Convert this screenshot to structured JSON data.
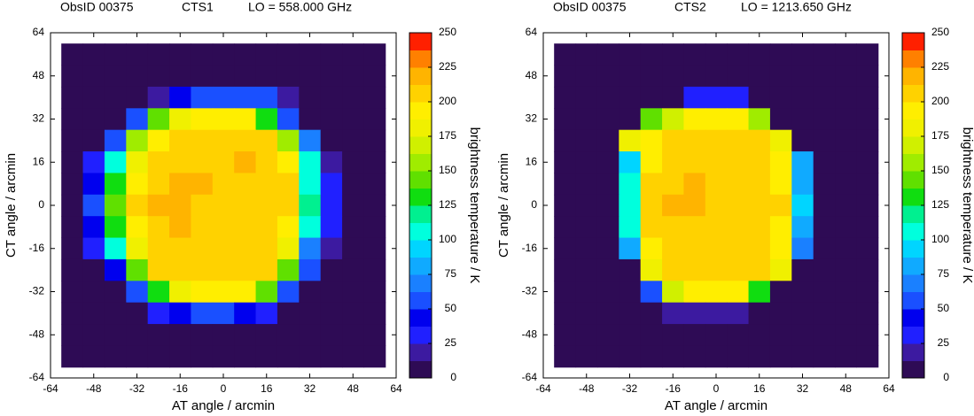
{
  "chart_data": [
    {
      "type": "heatmap",
      "title": [
        "ObsID 00375",
        "CTS1",
        "LO = 558.000 GHz"
      ],
      "x_label": "AT angle / arcmin",
      "y_label": "CT angle / arcmin",
      "colorbar_label": "brightness temperature / K",
      "xlim": [
        -64,
        64
      ],
      "ylim": [
        -64,
        64
      ],
      "xticks": [
        -64,
        -48,
        -32,
        -16,
        0,
        16,
        32,
        48,
        64
      ],
      "yticks": [
        -64,
        -48,
        -32,
        -16,
        0,
        16,
        32,
        48,
        64
      ],
      "clim": [
        0,
        250
      ],
      "cticks": [
        0,
        25,
        50,
        75,
        100,
        125,
        150,
        175,
        200,
        225,
        250
      ],
      "colors": [
        "#2e0b55",
        "#3c1aa0",
        "#2020ff",
        "#0000ee",
        "#1a50ff",
        "#1a80ff",
        "#10aaff",
        "#00d5ff",
        "#00ffdd",
        "#00f090",
        "#10dd10",
        "#60e000",
        "#a0ec00",
        "#d0f000",
        "#f0f000",
        "#ffee00",
        "#ffd200",
        "#ffb400",
        "#ff8000",
        "#ff2000"
      ],
      "x": [
        -56,
        -48,
        -40,
        -32,
        -24,
        -16,
        -8,
        0,
        8,
        16,
        24,
        32,
        40,
        48,
        56
      ],
      "y": [
        56,
        48,
        40,
        32,
        24,
        16,
        8,
        0,
        -8,
        -16,
        -24,
        -32,
        -40,
        -48,
        -56
      ],
      "z": [
        [
          5,
          5,
          5,
          5,
          5,
          5,
          5,
          5,
          5,
          5,
          5,
          5,
          5,
          5,
          5
        ],
        [
          5,
          5,
          5,
          5,
          8,
          10,
          10,
          10,
          10,
          8,
          5,
          5,
          5,
          5,
          5
        ],
        [
          5,
          5,
          5,
          8,
          15,
          40,
          50,
          60,
          55,
          50,
          15,
          8,
          5,
          5,
          5
        ],
        [
          5,
          5,
          10,
          60,
          140,
          185,
          195,
          195,
          190,
          130,
          60,
          10,
          5,
          5,
          5
        ],
        [
          5,
          8,
          60,
          150,
          195,
          200,
          205,
          205,
          205,
          200,
          150,
          70,
          10,
          5,
          5
        ],
        [
          5,
          30,
          110,
          185,
          205,
          210,
          205,
          210,
          215,
          205,
          190,
          100,
          20,
          5,
          5
        ],
        [
          5,
          45,
          130,
          195,
          210,
          215,
          215,
          210,
          210,
          205,
          200,
          110,
          30,
          5,
          5
        ],
        [
          5,
          50,
          140,
          200,
          215,
          220,
          210,
          205,
          205,
          205,
          200,
          115,
          30,
          5,
          5
        ],
        [
          5,
          40,
          125,
          195,
          210,
          215,
          210,
          205,
          205,
          200,
          190,
          100,
          25,
          5,
          5
        ],
        [
          5,
          25,
          100,
          185,
          205,
          205,
          205,
          205,
          205,
          200,
          180,
          70,
          15,
          5,
          5
        ],
        [
          5,
          10,
          40,
          140,
          200,
          205,
          205,
          205,
          210,
          200,
          140,
          50,
          10,
          5,
          5
        ],
        [
          5,
          5,
          10,
          50,
          130,
          180,
          195,
          195,
          190,
          140,
          60,
          10,
          5,
          5,
          5
        ],
        [
          5,
          5,
          5,
          10,
          30,
          45,
          50,
          55,
          45,
          30,
          10,
          5,
          5,
          5,
          5
        ],
        [
          5,
          5,
          5,
          5,
          8,
          10,
          10,
          10,
          10,
          8,
          5,
          5,
          5,
          5,
          5
        ],
        [
          5,
          5,
          5,
          5,
          5,
          5,
          5,
          5,
          5,
          5,
          5,
          5,
          5,
          5,
          5
        ]
      ]
    },
    {
      "type": "heatmap",
      "title": [
        "ObsID 00375",
        "CTS2",
        "LO = 1213.650 GHz"
      ],
      "x_label": "AT angle / arcmin",
      "y_label": "CT angle / arcmin",
      "colorbar_label": "brightness temperature / K",
      "xlim": [
        -64,
        64
      ],
      "ylim": [
        -64,
        64
      ],
      "xticks": [
        -64,
        -48,
        -32,
        -16,
        0,
        16,
        32,
        48,
        64
      ],
      "yticks": [
        -64,
        -48,
        -32,
        -16,
        0,
        16,
        32,
        48,
        64
      ],
      "clim": [
        0,
        250
      ],
      "cticks": [
        0,
        25,
        50,
        75,
        100,
        125,
        150,
        175,
        200,
        225,
        250
      ],
      "colors": [
        "#2e0b55",
        "#3c1aa0",
        "#2020ff",
        "#0000ee",
        "#1a50ff",
        "#1a80ff",
        "#10aaff",
        "#00d5ff",
        "#00ffdd",
        "#00f090",
        "#10dd10",
        "#60e000",
        "#a0ec00",
        "#d0f000",
        "#f0f000",
        "#ffee00",
        "#ffd200",
        "#ffb400",
        "#ff8000",
        "#ff2000"
      ],
      "x": [
        -56,
        -48,
        -40,
        -32,
        -24,
        -16,
        -8,
        0,
        8,
        16,
        24,
        32,
        40,
        48,
        56
      ],
      "y": [
        56,
        48,
        40,
        32,
        24,
        16,
        8,
        0,
        -8,
        -16,
        -24,
        -32,
        -40,
        -48,
        -56
      ],
      "z": [
        [
          5,
          5,
          5,
          5,
          5,
          5,
          5,
          5,
          5,
          5,
          5,
          5,
          5,
          5,
          5
        ],
        [
          5,
          5,
          5,
          5,
          5,
          5,
          5,
          10,
          10,
          5,
          5,
          5,
          5,
          5,
          5
        ],
        [
          5,
          5,
          5,
          5,
          5,
          10,
          30,
          35,
          30,
          10,
          5,
          5,
          5,
          5,
          5
        ],
        [
          5,
          5,
          5,
          5,
          140,
          170,
          195,
          195,
          190,
          150,
          10,
          5,
          5,
          5,
          5
        ],
        [
          5,
          5,
          5,
          175,
          195,
          205,
          205,
          205,
          205,
          200,
          175,
          10,
          5,
          5,
          5
        ],
        [
          5,
          5,
          10,
          90,
          195,
          205,
          210,
          210,
          205,
          200,
          195,
          75,
          10,
          5,
          5
        ],
        [
          5,
          5,
          10,
          100,
          200,
          210,
          215,
          210,
          205,
          205,
          195,
          85,
          10,
          5,
          5
        ],
        [
          5,
          5,
          10,
          110,
          205,
          215,
          220,
          210,
          205,
          205,
          200,
          95,
          10,
          5,
          5
        ],
        [
          5,
          5,
          10,
          100,
          200,
          210,
          210,
          205,
          205,
          200,
          195,
          85,
          10,
          5,
          5
        ],
        [
          5,
          5,
          10,
          85,
          190,
          205,
          205,
          200,
          200,
          200,
          190,
          70,
          10,
          5,
          5
        ],
        [
          5,
          5,
          5,
          10,
          175,
          200,
          205,
          210,
          210,
          200,
          175,
          10,
          5,
          5,
          5
        ],
        [
          10,
          10,
          10,
          10,
          60,
          165,
          195,
          195,
          190,
          130,
          10,
          10,
          5,
          5,
          5
        ],
        [
          5,
          5,
          5,
          5,
          10,
          15,
          20,
          20,
          15,
          10,
          5,
          5,
          5,
          5,
          5
        ],
        [
          5,
          5,
          5,
          5,
          8,
          10,
          10,
          10,
          8,
          5,
          5,
          5,
          5,
          5,
          5
        ],
        [
          5,
          5,
          5,
          5,
          5,
          5,
          5,
          5,
          5,
          5,
          5,
          5,
          5,
          5,
          5
        ]
      ]
    }
  ]
}
